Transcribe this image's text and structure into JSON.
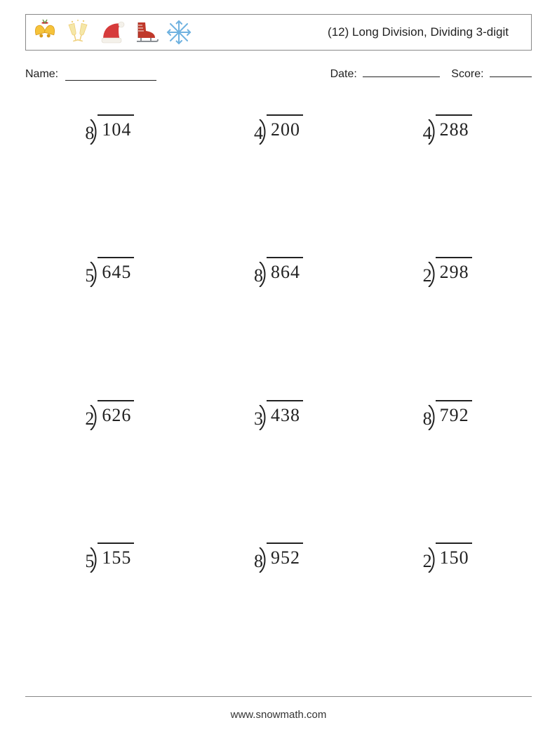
{
  "header": {
    "title": "(12) Long Division, Dividing 3-digit",
    "icons": [
      {
        "name": "bells-icon"
      },
      {
        "name": "toast-icon"
      },
      {
        "name": "santa-hat-icon"
      },
      {
        "name": "ice-skate-icon"
      },
      {
        "name": "snowflake-icon"
      }
    ],
    "border_color": "#888888"
  },
  "meta": {
    "name_label": "Name:",
    "date_label": "Date:",
    "score_label": "Score:"
  },
  "grid": {
    "rows": 4,
    "cols": 3,
    "problem_fontsize": 26,
    "text_color": "#222222",
    "rule_color": "#222222"
  },
  "problems": [
    {
      "divisor": "8",
      "dividend": "104"
    },
    {
      "divisor": "4",
      "dividend": "200"
    },
    {
      "divisor": "4",
      "dividend": "288"
    },
    {
      "divisor": "5",
      "dividend": "645"
    },
    {
      "divisor": "8",
      "dividend": "864"
    },
    {
      "divisor": "2",
      "dividend": "298"
    },
    {
      "divisor": "2",
      "dividend": "626"
    },
    {
      "divisor": "3",
      "dividend": "438"
    },
    {
      "divisor": "8",
      "dividend": "792"
    },
    {
      "divisor": "5",
      "dividend": "155"
    },
    {
      "divisor": "8",
      "dividend": "952"
    },
    {
      "divisor": "2",
      "dividend": "150"
    }
  ],
  "footer": {
    "url": "www.snowmath.com",
    "hr_color": "#888888"
  },
  "colors": {
    "background": "#ffffff",
    "bell_yellow": "#f6c33a",
    "bell_shadow": "#d89b1a",
    "ribbon_red": "#c22d2d",
    "glass_yellow": "#efcf78",
    "champagne": "#f5e7a8",
    "hat_red": "#d63b3b",
    "hat_trim": "#f4f1ea",
    "skate_red": "#c0392b",
    "skate_blade": "#8a8f94",
    "snow_blue": "#6fb2e0"
  }
}
